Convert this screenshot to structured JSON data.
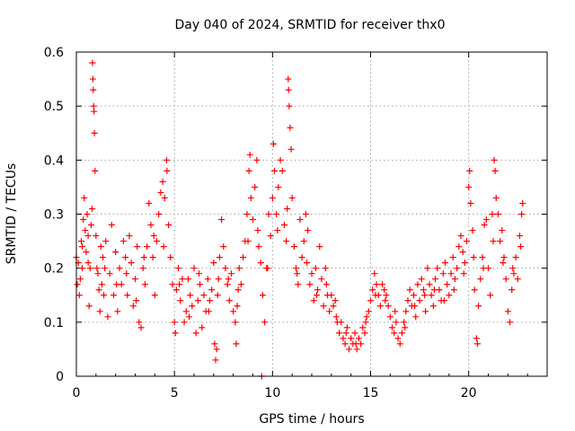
{
  "chart_data": {
    "type": "scatter",
    "title": "Day 040 of 2024, SRMTID for receiver thx0",
    "xlabel": "GPS time / hours",
    "ylabel": "SRMTID / TECUs",
    "xlim": [
      0,
      24
    ],
    "ylim": [
      0,
      0.6
    ],
    "xticks": [
      0,
      5,
      10,
      15,
      20
    ],
    "yticks": [
      0,
      0.1,
      0.2,
      0.3,
      0.4,
      0.5,
      0.6
    ],
    "xtick_labels": [
      "0",
      "5",
      "10",
      "15",
      "20"
    ],
    "ytick_labels": [
      "0",
      "0.1",
      "0.2",
      "0.3",
      "0.4",
      "0.5",
      "0.6"
    ],
    "grid": true,
    "marker": "+",
    "color": "#ff0000",
    "series": [
      {
        "name": "SRMTID",
        "points": [
          [
            0.0,
            0.22
          ],
          [
            0.05,
            0.17
          ],
          [
            0.1,
            0.21
          ],
          [
            0.15,
            0.15
          ],
          [
            0.2,
            0.18
          ],
          [
            0.25,
            0.25
          ],
          [
            0.3,
            0.24
          ],
          [
            0.35,
            0.29
          ],
          [
            0.4,
            0.33
          ],
          [
            0.45,
            0.27
          ],
          [
            0.5,
            0.23
          ],
          [
            0.55,
            0.3
          ],
          [
            0.6,
            0.21
          ],
          [
            0.65,
            0.13
          ],
          [
            0.7,
            0.2
          ],
          [
            0.75,
            0.28
          ],
          [
            0.8,
            0.31
          ],
          [
            0.82,
            0.58
          ],
          [
            0.84,
            0.55
          ],
          [
            0.86,
            0.53
          ],
          [
            0.88,
            0.5
          ],
          [
            0.9,
            0.49
          ],
          [
            0.92,
            0.45
          ],
          [
            0.95,
            0.38
          ],
          [
            1.0,
            0.26
          ],
          [
            1.05,
            0.2
          ],
          [
            1.1,
            0.19
          ],
          [
            1.2,
            0.12
          ],
          [
            1.25,
            0.24
          ],
          [
            1.3,
            0.17
          ],
          [
            1.35,
            0.22
          ],
          [
            1.4,
            0.15
          ],
          [
            1.5,
            0.25
          ],
          [
            1.6,
            0.11
          ],
          [
            1.7,
            0.19
          ],
          [
            1.8,
            0.28
          ],
          [
            1.9,
            0.15
          ],
          [
            2.0,
            0.23
          ],
          [
            2.1,
            0.12
          ],
          [
            2.2,
            0.2
          ],
          [
            2.3,
            0.17
          ],
          [
            2.4,
            0.25
          ],
          [
            2.5,
            0.22
          ],
          [
            2.6,
            0.15
          ],
          [
            2.7,
            0.26
          ],
          [
            2.8,
            0.21
          ],
          [
            2.9,
            0.13
          ],
          [
            3.0,
            0.18
          ],
          [
            3.1,
            0.24
          ],
          [
            3.2,
            0.1
          ],
          [
            3.3,
            0.09
          ],
          [
            3.4,
            0.2
          ],
          [
            3.5,
            0.17
          ],
          [
            3.6,
            0.24
          ],
          [
            3.7,
            0.32
          ],
          [
            3.8,
            0.28
          ],
          [
            3.9,
            0.22
          ],
          [
            4.0,
            0.15
          ],
          [
            4.1,
            0.25
          ],
          [
            4.2,
            0.3
          ],
          [
            4.3,
            0.34
          ],
          [
            4.4,
            0.36
          ],
          [
            4.5,
            0.33
          ],
          [
            4.6,
            0.4
          ],
          [
            4.62,
            0.38
          ],
          [
            4.7,
            0.28
          ],
          [
            4.8,
            0.22
          ],
          [
            4.9,
            0.17
          ],
          [
            5.0,
            0.1
          ],
          [
            5.05,
            0.08
          ],
          [
            5.1,
            0.16
          ],
          [
            5.2,
            0.2
          ],
          [
            5.3,
            0.14
          ],
          [
            5.4,
            0.18
          ],
          [
            5.5,
            0.1
          ],
          [
            5.6,
            0.12
          ],
          [
            5.7,
            0.18
          ],
          [
            5.8,
            0.15
          ],
          [
            5.9,
            0.13
          ],
          [
            6.0,
            0.2
          ],
          [
            6.1,
            0.08
          ],
          [
            6.2,
            0.14
          ],
          [
            6.3,
            0.17
          ],
          [
            6.4,
            0.09
          ],
          [
            6.5,
            0.15
          ],
          [
            6.6,
            0.12
          ],
          [
            6.7,
            0.18
          ],
          [
            6.8,
            0.14
          ],
          [
            6.9,
            0.16
          ],
          [
            7.0,
            0.21
          ],
          [
            7.05,
            0.06
          ],
          [
            7.1,
            0.03
          ],
          [
            7.15,
            0.05
          ],
          [
            7.2,
            0.15
          ],
          [
            7.3,
            0.22
          ],
          [
            7.4,
            0.29
          ],
          [
            7.5,
            0.24
          ],
          [
            7.6,
            0.2
          ],
          [
            7.7,
            0.17
          ],
          [
            7.8,
            0.14
          ],
          [
            7.9,
            0.19
          ],
          [
            8.0,
            0.12
          ],
          [
            8.1,
            0.1
          ],
          [
            8.15,
            0.06
          ],
          [
            8.2,
            0.13
          ],
          [
            8.3,
            0.2
          ],
          [
            8.4,
            0.17
          ],
          [
            8.5,
            0.22
          ],
          [
            8.6,
            0.25
          ],
          [
            8.7,
            0.3
          ],
          [
            8.8,
            0.38
          ],
          [
            8.85,
            0.41
          ],
          [
            8.9,
            0.33
          ],
          [
            9.0,
            0.29
          ],
          [
            9.1,
            0.35
          ],
          [
            9.2,
            0.4
          ],
          [
            9.3,
            0.24
          ],
          [
            9.4,
            0.21
          ],
          [
            9.45,
            0.0
          ],
          [
            9.5,
            0.15
          ],
          [
            9.6,
            0.1
          ],
          [
            9.7,
            0.2
          ],
          [
            9.8,
            0.3
          ],
          [
            9.9,
            0.26
          ],
          [
            10.0,
            0.33
          ],
          [
            10.05,
            0.43
          ],
          [
            10.1,
            0.38
          ],
          [
            10.2,
            0.3
          ],
          [
            10.3,
            0.35
          ],
          [
            10.4,
            0.4
          ],
          [
            10.5,
            0.38
          ],
          [
            10.6,
            0.28
          ],
          [
            10.7,
            0.25
          ],
          [
            10.8,
            0.55
          ],
          [
            10.82,
            0.53
          ],
          [
            10.85,
            0.5
          ],
          [
            10.9,
            0.46
          ],
          [
            10.95,
            0.42
          ],
          [
            11.0,
            0.33
          ],
          [
            11.1,
            0.24
          ],
          [
            11.2,
            0.2
          ],
          [
            11.3,
            0.17
          ],
          [
            11.4,
            0.29
          ],
          [
            11.5,
            0.22
          ],
          [
            11.6,
            0.25
          ],
          [
            11.7,
            0.3
          ],
          [
            11.8,
            0.27
          ],
          [
            11.9,
            0.17
          ],
          [
            12.0,
            0.19
          ],
          [
            12.1,
            0.14
          ],
          [
            12.2,
            0.2
          ],
          [
            12.3,
            0.16
          ],
          [
            12.4,
            0.24
          ],
          [
            12.5,
            0.18
          ],
          [
            12.6,
            0.13
          ],
          [
            12.7,
            0.2
          ],
          [
            12.8,
            0.15
          ],
          [
            12.9,
            0.12
          ],
          [
            13.0,
            0.15
          ],
          [
            13.1,
            0.13
          ],
          [
            13.2,
            0.14
          ],
          [
            13.3,
            0.1
          ],
          [
            13.4,
            0.08
          ],
          [
            13.5,
            0.1
          ],
          [
            13.6,
            0.07
          ],
          [
            13.7,
            0.06
          ],
          [
            13.8,
            0.09
          ],
          [
            13.9,
            0.05
          ],
          [
            14.0,
            0.07
          ],
          [
            14.1,
            0.06
          ],
          [
            14.2,
            0.08
          ],
          [
            14.3,
            0.05
          ],
          [
            14.4,
            0.07
          ],
          [
            14.5,
            0.06
          ],
          [
            14.6,
            0.09
          ],
          [
            14.7,
            0.08
          ],
          [
            14.8,
            0.11
          ],
          [
            14.9,
            0.12
          ],
          [
            15.0,
            0.14
          ],
          [
            15.1,
            0.16
          ],
          [
            15.2,
            0.19
          ],
          [
            15.3,
            0.17
          ],
          [
            15.4,
            0.15
          ],
          [
            15.5,
            0.13
          ],
          [
            15.6,
            0.17
          ],
          [
            15.7,
            0.16
          ],
          [
            15.8,
            0.15
          ],
          [
            15.9,
            0.13
          ],
          [
            16.0,
            0.11
          ],
          [
            16.1,
            0.09
          ],
          [
            16.2,
            0.08
          ],
          [
            16.3,
            0.1
          ],
          [
            16.4,
            0.07
          ],
          [
            16.5,
            0.06
          ],
          [
            16.6,
            0.08
          ],
          [
            16.7,
            0.1
          ],
          [
            16.8,
            0.12
          ],
          [
            16.9,
            0.14
          ],
          [
            17.0,
            0.16
          ],
          [
            17.1,
            0.13
          ],
          [
            17.2,
            0.15
          ],
          [
            17.3,
            0.11
          ],
          [
            17.4,
            0.17
          ],
          [
            17.5,
            0.14
          ],
          [
            17.6,
            0.18
          ],
          [
            17.7,
            0.16
          ],
          [
            17.8,
            0.12
          ],
          [
            17.9,
            0.2
          ],
          [
            18.0,
            0.17
          ],
          [
            18.1,
            0.15
          ],
          [
            18.2,
            0.13
          ],
          [
            18.3,
            0.18
          ],
          [
            18.4,
            0.2
          ],
          [
            18.5,
            0.16
          ],
          [
            18.6,
            0.14
          ],
          [
            18.7,
            0.19
          ],
          [
            18.8,
            0.21
          ],
          [
            18.9,
            0.17
          ],
          [
            19.0,
            0.15
          ],
          [
            19.1,
            0.19
          ],
          [
            19.2,
            0.22
          ],
          [
            19.3,
            0.18
          ],
          [
            19.4,
            0.2
          ],
          [
            19.5,
            0.24
          ],
          [
            19.6,
            0.26
          ],
          [
            19.7,
            0.23
          ],
          [
            19.8,
            0.21
          ],
          [
            19.9,
            0.25
          ],
          [
            20.0,
            0.35
          ],
          [
            20.05,
            0.38
          ],
          [
            20.1,
            0.32
          ],
          [
            20.2,
            0.27
          ],
          [
            20.3,
            0.16
          ],
          [
            20.4,
            0.07
          ],
          [
            20.45,
            0.06
          ],
          [
            20.5,
            0.13
          ],
          [
            20.6,
            0.18
          ],
          [
            20.7,
            0.22
          ],
          [
            20.8,
            0.28
          ],
          [
            20.9,
            0.29
          ],
          [
            21.0,
            0.2
          ],
          [
            21.1,
            0.15
          ],
          [
            21.2,
            0.3
          ],
          [
            21.3,
            0.4
          ],
          [
            21.35,
            0.38
          ],
          [
            21.4,
            0.33
          ],
          [
            21.5,
            0.3
          ],
          [
            21.6,
            0.25
          ],
          [
            21.7,
            0.27
          ],
          [
            21.8,
            0.22
          ],
          [
            21.9,
            0.18
          ],
          [
            22.0,
            0.12
          ],
          [
            22.1,
            0.1
          ],
          [
            22.2,
            0.16
          ],
          [
            22.3,
            0.19
          ],
          [
            22.4,
            0.22
          ],
          [
            22.5,
            0.18
          ],
          [
            22.6,
            0.26
          ],
          [
            22.7,
            0.3
          ],
          [
            22.75,
            0.32
          ],
          [
            0.3,
            0.2
          ],
          [
            0.6,
            0.26
          ],
          [
            1.15,
            0.16
          ],
          [
            1.45,
            0.2
          ],
          [
            2.05,
            0.17
          ],
          [
            2.55,
            0.19
          ],
          [
            3.05,
            0.14
          ],
          [
            3.45,
            0.22
          ],
          [
            3.95,
            0.26
          ],
          [
            4.45,
            0.24
          ],
          [
            5.25,
            0.17
          ],
          [
            5.75,
            0.11
          ],
          [
            6.25,
            0.19
          ],
          [
            6.75,
            0.12
          ],
          [
            7.25,
            0.18
          ],
          [
            7.75,
            0.18
          ],
          [
            8.25,
            0.16
          ],
          [
            8.75,
            0.25
          ],
          [
            9.25,
            0.27
          ],
          [
            9.75,
            0.2
          ],
          [
            10.25,
            0.27
          ],
          [
            10.75,
            0.31
          ],
          [
            11.25,
            0.19
          ],
          [
            11.75,
            0.21
          ],
          [
            12.25,
            0.15
          ],
          [
            12.75,
            0.17
          ],
          [
            13.25,
            0.11
          ],
          [
            13.75,
            0.08
          ],
          [
            14.25,
            0.06
          ],
          [
            14.75,
            0.1
          ],
          [
            15.25,
            0.15
          ],
          [
            15.75,
            0.14
          ],
          [
            16.25,
            0.12
          ],
          [
            16.75,
            0.09
          ],
          [
            17.25,
            0.13
          ],
          [
            17.75,
            0.15
          ],
          [
            18.25,
            0.16
          ],
          [
            18.75,
            0.14
          ],
          [
            19.25,
            0.16
          ],
          [
            19.75,
            0.19
          ],
          [
            20.25,
            0.22
          ],
          [
            20.75,
            0.2
          ],
          [
            21.25,
            0.25
          ],
          [
            21.75,
            0.21
          ],
          [
            22.25,
            0.2
          ],
          [
            22.65,
            0.24
          ]
        ]
      }
    ]
  }
}
